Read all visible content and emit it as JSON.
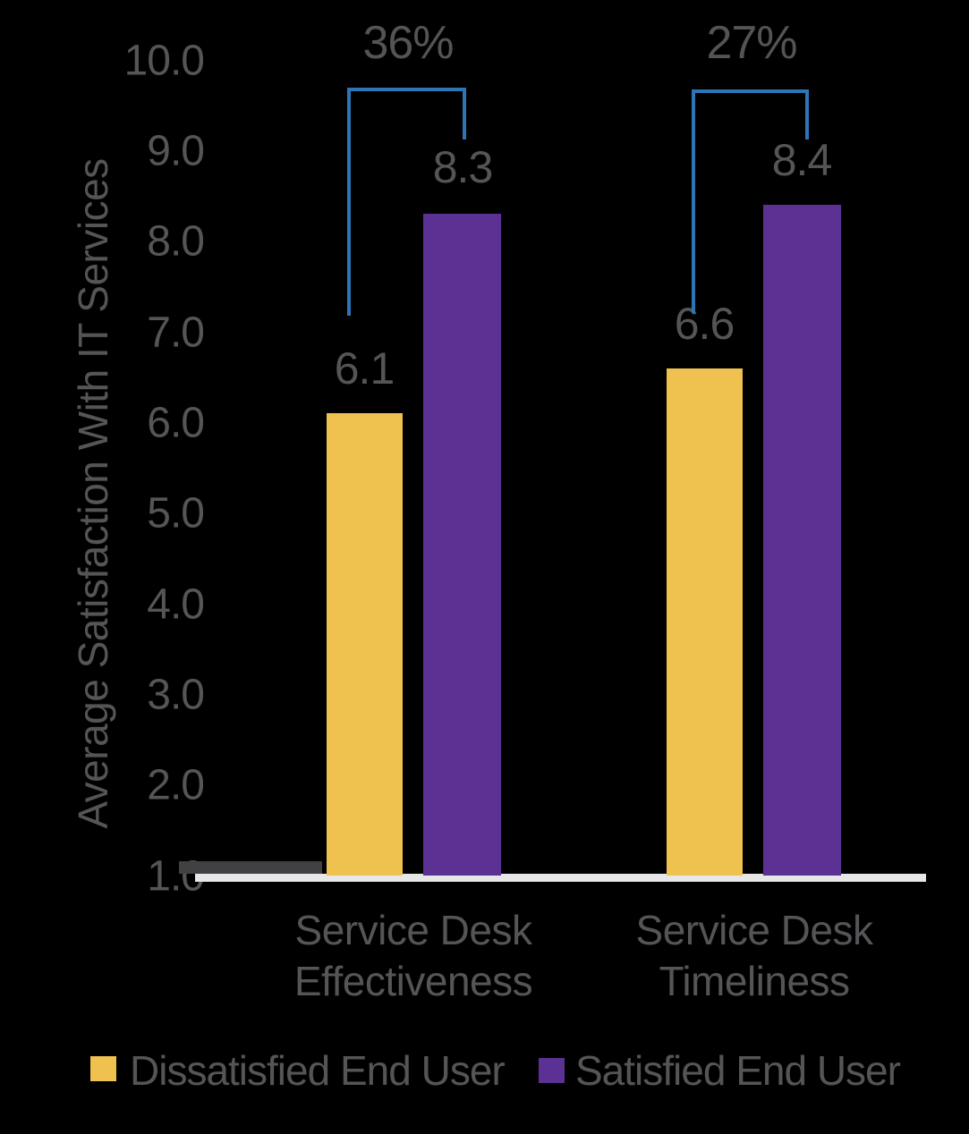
{
  "colors": {
    "background": "#000000",
    "text_gray": "#555558",
    "bracket_blue": "#2E75B6",
    "baseline_light": "#E8E7E7",
    "axis_dark_segment": "#414144",
    "dissatisfied_yellow": "#EFC24F",
    "satisfied_purple": "#5C3194"
  },
  "chart_data": {
    "type": "bar",
    "title": "",
    "ylabel": "Average Satisfaction With IT Services",
    "xlabel": "",
    "ylim": [
      1.0,
      10.0
    ],
    "yticks": [
      "10.0",
      "9.0",
      "8.0",
      "7.0",
      "6.0",
      "5.0",
      "4.0",
      "3.0",
      "2.0",
      "1.0"
    ],
    "grid": false,
    "legend_position": "bottom",
    "categories": [
      "Service Desk Effectiveness",
      "Service Desk Timeliness"
    ],
    "category_labels": [
      {
        "line1": "Service Desk",
        "line2": "Effectiveness"
      },
      {
        "line1": "Service Desk",
        "line2": "Timeliness"
      }
    ],
    "series": [
      {
        "name": "Dissatisfied End User",
        "color": "#EFC24F",
        "values": [
          6.1,
          6.6
        ]
      },
      {
        "name": "Satisfied End User",
        "color": "#5C3194",
        "values": [
          8.3,
          8.4
        ]
      }
    ],
    "value_labels": [
      [
        "6.1",
        "6.6"
      ],
      [
        "8.3",
        "8.4"
      ]
    ],
    "annotations": [
      {
        "group": "Service Desk Effectiveness",
        "label": "36%"
      },
      {
        "group": "Service Desk Timeliness",
        "label": "27%"
      }
    ]
  }
}
